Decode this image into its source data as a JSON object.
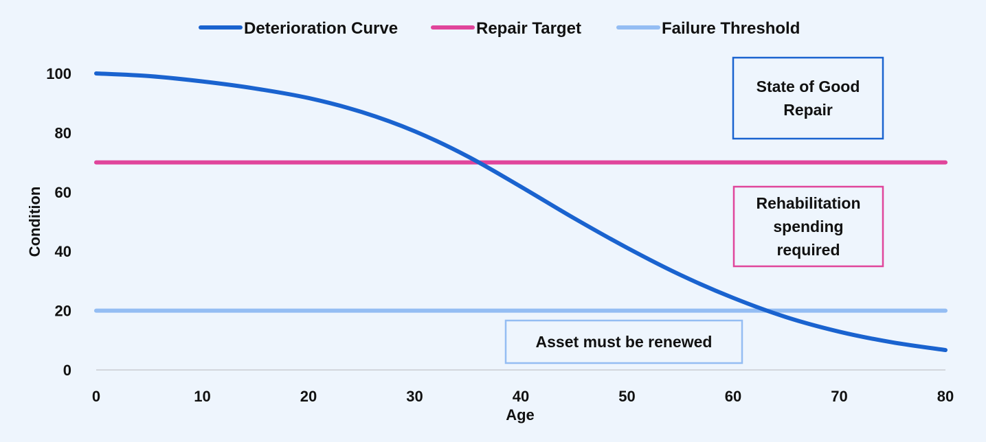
{
  "chart_data": {
    "type": "line",
    "xlabel": "Age",
    "ylabel": "Condition",
    "xlim": [
      0,
      80
    ],
    "ylim": [
      0,
      100
    ],
    "xticks": [
      0,
      10,
      20,
      30,
      40,
      50,
      60,
      70,
      80
    ],
    "yticks": [
      0,
      20,
      40,
      60,
      80,
      100
    ],
    "grid": false,
    "legend_position": "top-center",
    "series": [
      {
        "name": "Deterioration Curve",
        "color": "#1a63cf",
        "x": [
          0,
          5,
          10,
          15,
          20,
          25,
          30,
          35,
          40,
          45,
          50,
          55,
          60,
          65,
          70,
          75,
          80
        ],
        "y": [
          100,
          99.1,
          97.3,
          94.9,
          91.7,
          87,
          80.5,
          72,
          61.8,
          51.2,
          41.2,
          32.1,
          24.3,
          17.8,
          12.9,
          9.3,
          6.7
        ]
      },
      {
        "name": "Repair Target",
        "color": "#e0459b",
        "x": [
          0,
          80
        ],
        "y": [
          70,
          70
        ]
      },
      {
        "name": "Failure Threshold",
        "color": "#94bdf3",
        "x": [
          0,
          80
        ],
        "y": [
          20,
          20
        ]
      }
    ],
    "annotations": [
      {
        "lines": [
          "State of Good",
          "Repair"
        ],
        "border_color": "#1a63cf"
      },
      {
        "lines": [
          "Rehabilitation",
          "spending",
          "required"
        ],
        "border_color": "#e0459b"
      },
      {
        "lines": [
          "Asset must be renewed"
        ],
        "border_color": "#94bdf3"
      }
    ]
  }
}
